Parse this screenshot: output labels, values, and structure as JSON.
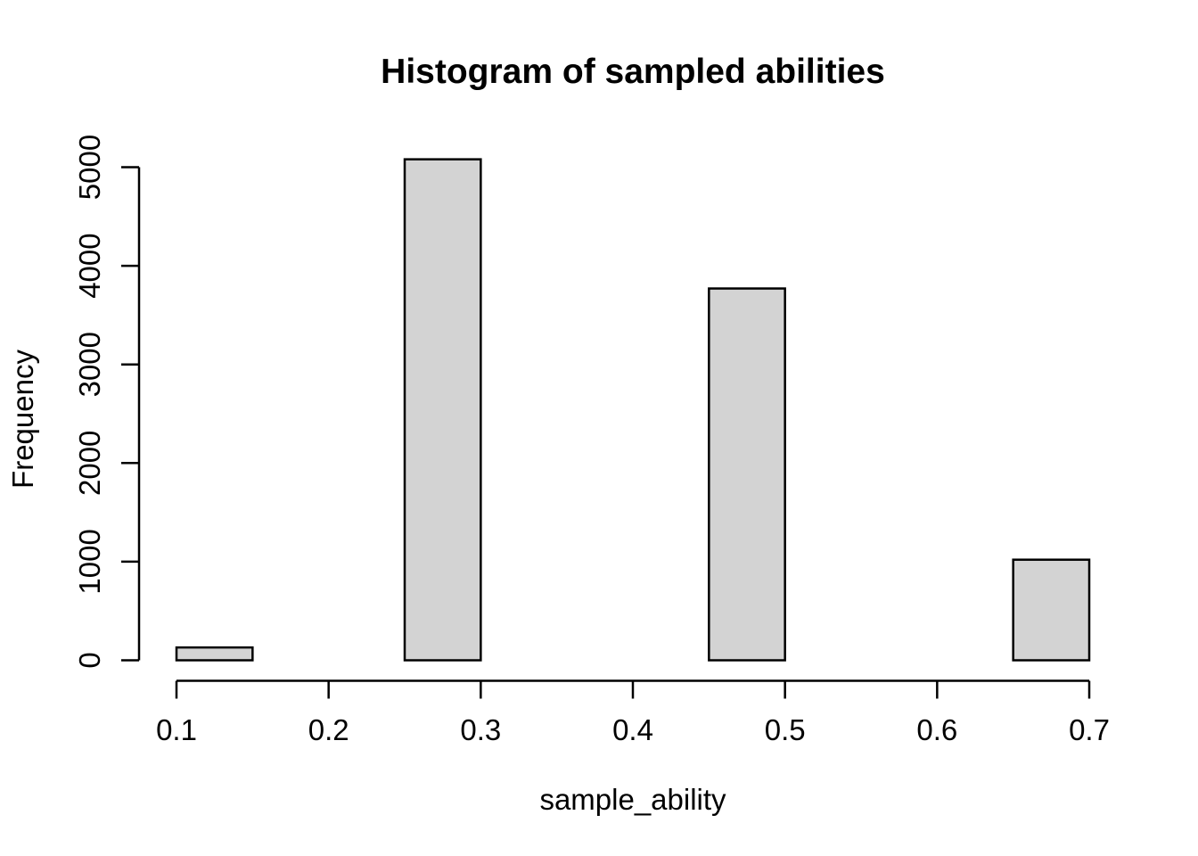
{
  "chart_data": {
    "type": "bar",
    "subtype": "histogram",
    "title": "Histogram of sampled abilities",
    "xlabel": "sample_ability",
    "ylabel": "Frequency",
    "bins": [
      {
        "x0": 0.1,
        "x1": 0.15,
        "count": 130
      },
      {
        "x0": 0.25,
        "x1": 0.3,
        "count": 5080
      },
      {
        "x0": 0.45,
        "x1": 0.5,
        "count": 3770
      },
      {
        "x0": 0.65,
        "x1": 0.7,
        "count": 1020
      }
    ],
    "x_ticks": [
      {
        "value": 0.1,
        "label": "0.1"
      },
      {
        "value": 0.2,
        "label": "0.2"
      },
      {
        "value": 0.3,
        "label": "0.3"
      },
      {
        "value": 0.4,
        "label": "0.4"
      },
      {
        "value": 0.5,
        "label": "0.5"
      },
      {
        "value": 0.6,
        "label": "0.6"
      },
      {
        "value": 0.7,
        "label": "0.7"
      }
    ],
    "y_ticks": [
      {
        "value": 0,
        "label": "0"
      },
      {
        "value": 1000,
        "label": "1000"
      },
      {
        "value": 2000,
        "label": "2000"
      },
      {
        "value": 3000,
        "label": "3000"
      },
      {
        "value": 4000,
        "label": "4000"
      },
      {
        "value": 5000,
        "label": "5000"
      }
    ],
    "xlim": [
      0.1,
      0.7
    ],
    "ylim": [
      0,
      5000
    ],
    "grid": false,
    "legend": "none",
    "colors": {
      "bar_fill": "#d3d3d3",
      "bar_stroke": "#000000",
      "axis": "#000000",
      "text": "#000000",
      "background": "#ffffff"
    }
  }
}
